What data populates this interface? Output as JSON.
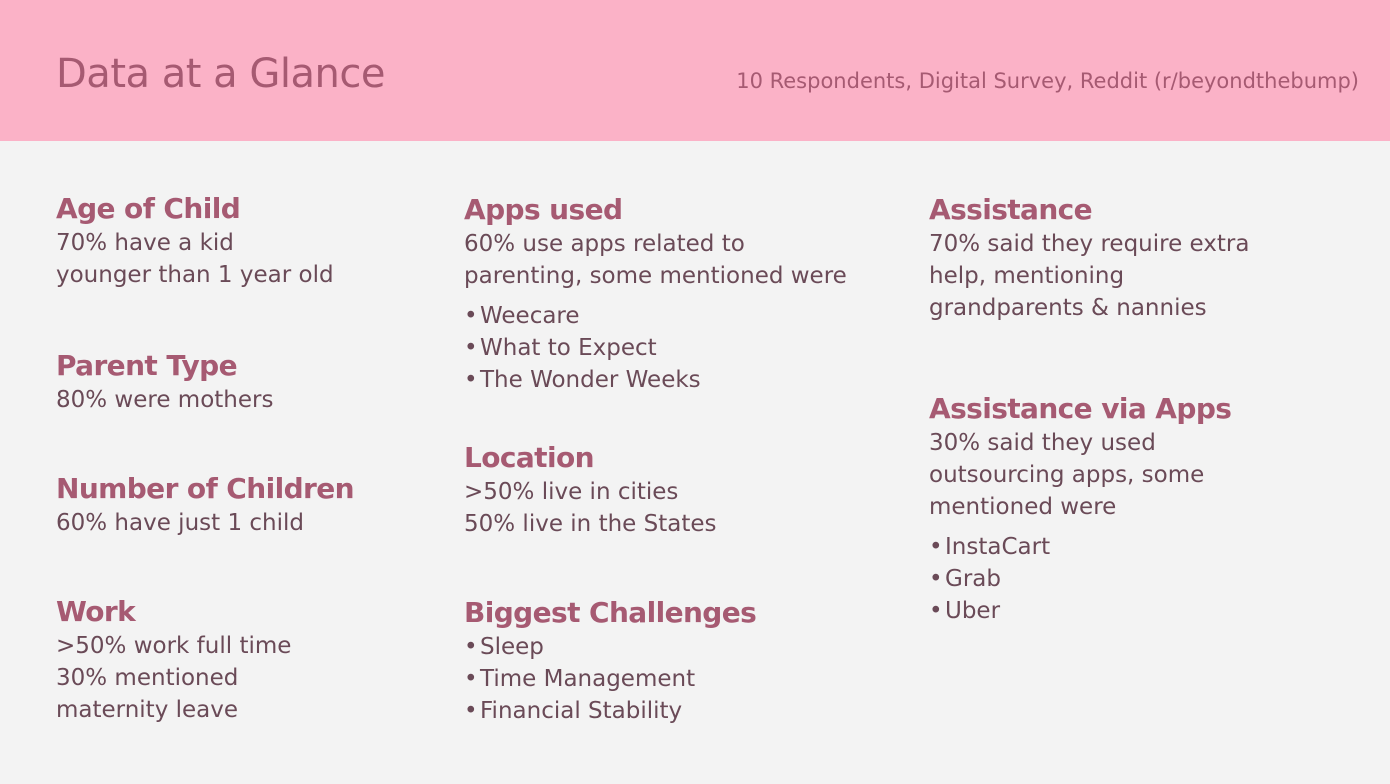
{
  "header": {
    "title": "Data at a Glance",
    "subtitle": "10 Respondents, Digital Survey, Reddit (r/beyondthebump)"
  },
  "sections": {
    "age_of_child": {
      "heading": "Age of Child",
      "lines": [
        "70% have a kid",
        "younger than 1 year old"
      ]
    },
    "parent_type": {
      "heading": "Parent Type",
      "lines": [
        "80% were mothers"
      ]
    },
    "number_of_children": {
      "heading": "Number of Children",
      "lines": [
        "60% have just 1 child"
      ]
    },
    "work": {
      "heading": "Work",
      "lines": [
        ">50% work full time",
        "30% mentioned",
        "maternity leave"
      ]
    },
    "apps_used": {
      "heading": "Apps used",
      "lines": [
        "60% use apps related to",
        "parenting, some mentioned were"
      ],
      "bullets": [
        "Weecare",
        "What to Expect",
        "The Wonder Weeks"
      ]
    },
    "location": {
      "heading": "Location",
      "lines": [
        ">50% live in cities",
        "50% live in the States"
      ]
    },
    "biggest_challenges": {
      "heading": "Biggest Challenges",
      "bullets": [
        "Sleep",
        "Time Management",
        "Financial Stability"
      ]
    },
    "assistance": {
      "heading": "Assistance",
      "lines": [
        "70% said they require extra",
        "help, mentioning",
        "grandparents & nannies"
      ]
    },
    "assistance_via_apps": {
      "heading": "Assistance via Apps",
      "lines": [
        "30% said they used",
        "outsourcing apps, some",
        "mentioned were"
      ],
      "bullets": [
        "InstaCart",
        "Grab",
        "Uber"
      ]
    }
  }
}
